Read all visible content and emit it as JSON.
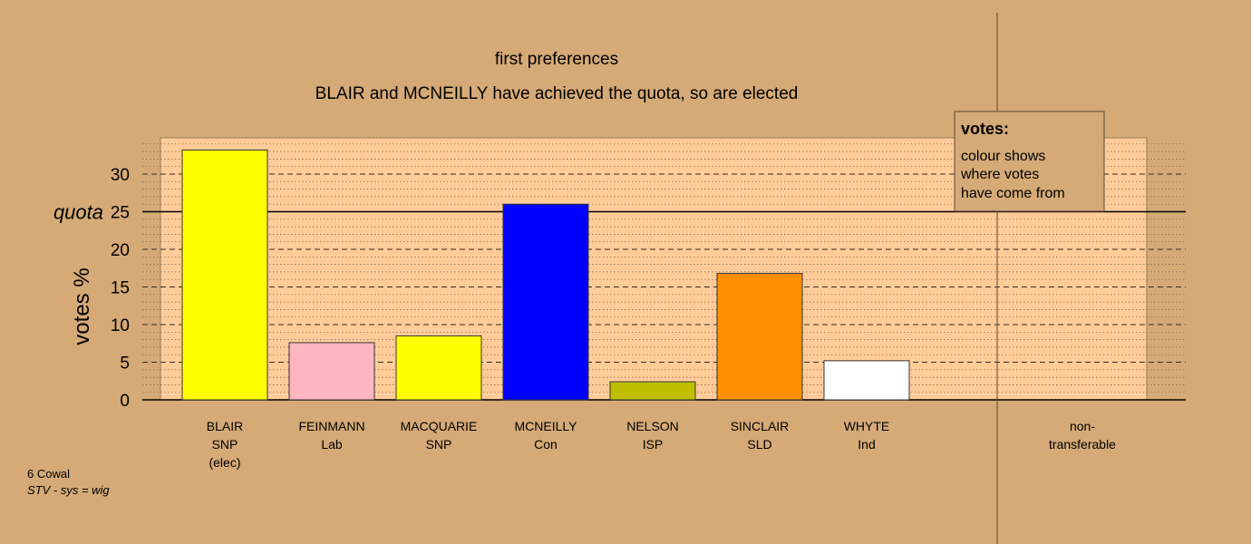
{
  "chart_data": {
    "type": "bar",
    "title": "first preferences",
    "subtitle": "BLAIR and MCNEILLY have achieved the quota, so are elected",
    "ylabel": "votes %",
    "ylim": [
      0,
      35
    ],
    "yticks": [
      0,
      5,
      10,
      15,
      20,
      25,
      30
    ],
    "quota": {
      "label": "quota",
      "value": 25
    },
    "bars": [
      {
        "lines": [
          "BLAIR",
          "SNP",
          "(elec)"
        ],
        "value": 33.2,
        "color": "#ffff00"
      },
      {
        "lines": [
          "FEINMANN",
          "Lab"
        ],
        "value": 7.6,
        "color": "#ffb6c1"
      },
      {
        "lines": [
          "MACQUARIE",
          "SNP"
        ],
        "value": 8.5,
        "color": "#ffff00"
      },
      {
        "lines": [
          "MCNEILLY",
          "Con"
        ],
        "value": 26.0,
        "color": "#0000ff"
      },
      {
        "lines": [
          "NELSON",
          "ISP"
        ],
        "value": 2.4,
        "color": "#bfbf00"
      },
      {
        "lines": [
          "SINCLAIR",
          "SLD"
        ],
        "value": 16.8,
        "color": "#ff9000"
      },
      {
        "lines": [
          "WHYTE",
          "Ind"
        ],
        "value": 5.2,
        "color": "#ffffff"
      }
    ],
    "nontransferable": {
      "lines": [
        "non-",
        "transferable"
      ],
      "value": 0
    },
    "legend": {
      "title": "votes:",
      "lines": [
        "colour shows",
        "where votes",
        "have come from"
      ],
      "position": "top-right"
    }
  },
  "footer": {
    "constituency": "6 Cowal",
    "system": "STV - sys = wig"
  },
  "colors": {
    "background": "#d5aa77",
    "plot_area": "#ffcc99"
  }
}
